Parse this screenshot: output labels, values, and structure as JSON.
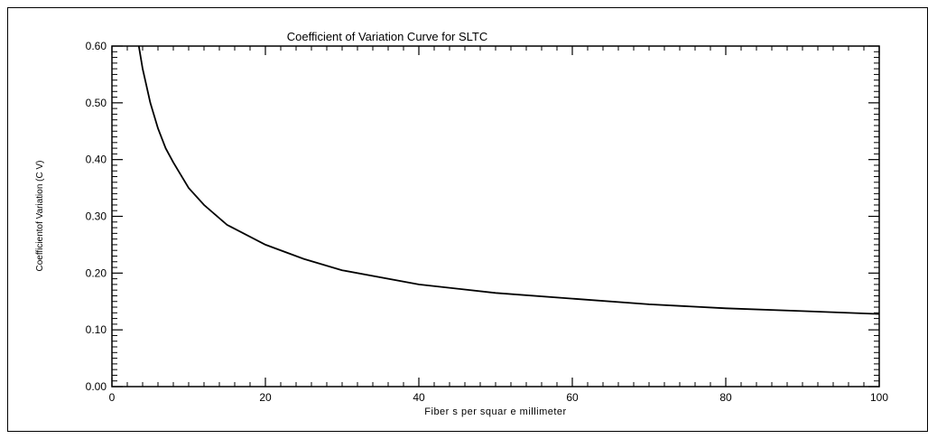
{
  "chart_data": {
    "type": "line",
    "title": "Coefficient of Variation Curve for SLTC",
    "xlabel": "Fiber s per squar e millimeter",
    "ylabel": "Coefficientof Variation (C V)",
    "xlim": [
      0,
      100
    ],
    "ylim": [
      0.0,
      0.6
    ],
    "x_ticks": [
      0,
      20,
      40,
      60,
      80,
      100
    ],
    "x_tick_labels": [
      "0",
      "20",
      "40",
      "60",
      "80",
      "100"
    ],
    "y_ticks": [
      0.0,
      0.1,
      0.2,
      0.3,
      0.4,
      0.5,
      0.6
    ],
    "y_tick_labels": [
      "0.00",
      "0.10",
      "0.20",
      "0.30",
      "0.40",
      "0.50",
      "0.60"
    ],
    "grid": false,
    "line_color": "#000000",
    "series": [
      {
        "x": [
          3.5,
          4,
          5,
          6,
          7,
          8,
          10,
          12,
          15,
          20,
          25,
          30,
          40,
          50,
          60,
          70,
          80,
          90,
          100
        ],
        "y": [
          0.6,
          0.56,
          0.5,
          0.455,
          0.42,
          0.395,
          0.35,
          0.32,
          0.285,
          0.25,
          0.225,
          0.205,
          0.18,
          0.165,
          0.155,
          0.145,
          0.138,
          0.133,
          0.128
        ]
      }
    ]
  }
}
